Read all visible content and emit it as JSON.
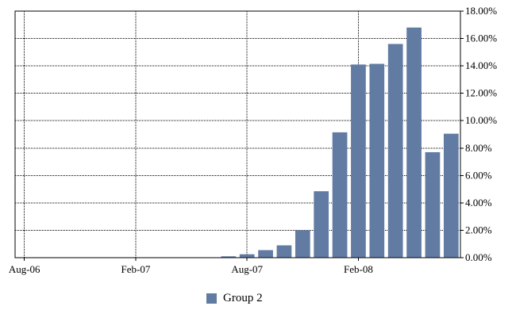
{
  "chart_data": {
    "type": "bar",
    "x": [
      "Aug-06",
      "Sep-06",
      "Oct-06",
      "Nov-06",
      "Dec-06",
      "Jan-07",
      "Feb-07",
      "Mar-07",
      "Apr-07",
      "May-07",
      "Jun-07",
      "Jul-07",
      "Aug-07",
      "Sep-07",
      "Oct-07",
      "Nov-07",
      "Dec-07",
      "Jan-08",
      "Feb-08",
      "Mar-08",
      "Apr-08",
      "May-08",
      "Jun-08",
      "Jul-08"
    ],
    "x_tick_labels": [
      "Aug-06",
      "Feb-07",
      "Aug-07",
      "Feb-08"
    ],
    "series": [
      {
        "name": "Group 2",
        "color": "#617ba3",
        "values": [
          0,
          0,
          0,
          0,
          0,
          0,
          0,
          0,
          0,
          0,
          0,
          0.1,
          0.25,
          0.55,
          0.9,
          2.0,
          4.85,
          9.15,
          14.1,
          14.15,
          15.6,
          16.8,
          7.7,
          9.05
        ]
      }
    ],
    "y_unit": "%",
    "y_tick_labels": [
      "0.00%",
      "2.00%",
      "4.00%",
      "6.00%",
      "8.00%",
      "10.00%",
      "12.00%",
      "14.00%",
      "16.00%",
      "18.00%"
    ],
    "ylim": [
      0,
      18
    ],
    "y_axis_side": "right",
    "grid": "dotted",
    "legend_position": "bottom-center"
  },
  "legend": {
    "label": "Group 2"
  }
}
